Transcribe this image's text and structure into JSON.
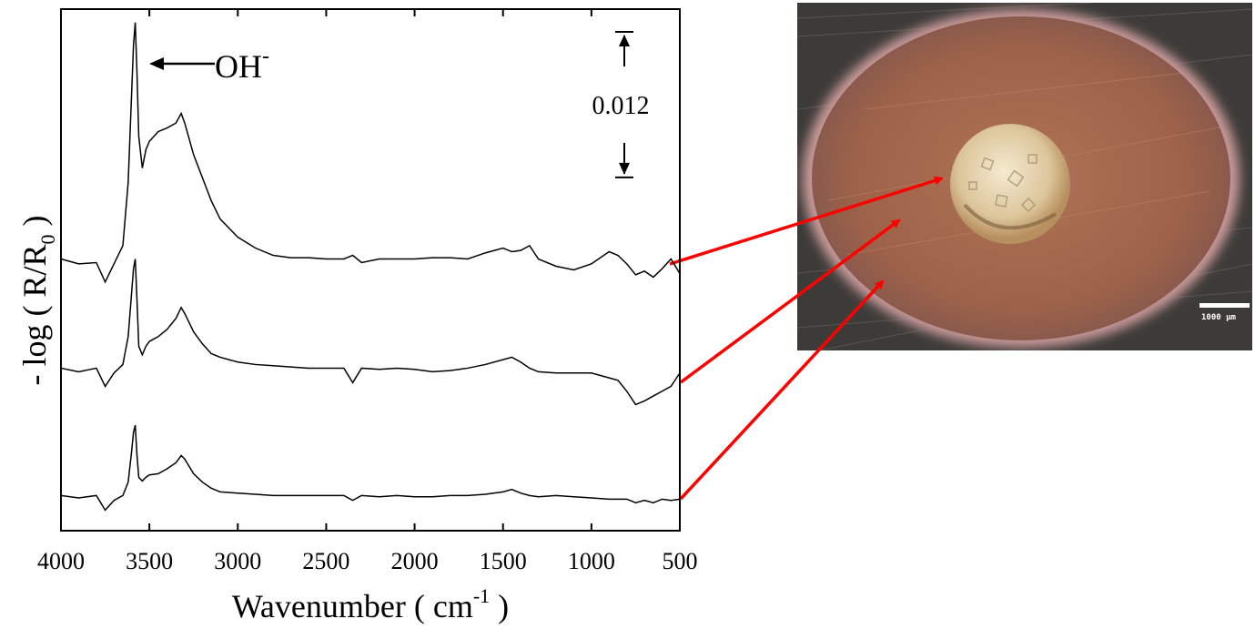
{
  "chart_data": {
    "type": "line",
    "x_label": {
      "text": "Wavenumber ( cm",
      "sup": "-1",
      "end": " )"
    },
    "y_label": {
      "text": "- log ( R/R",
      "sub": "0",
      "end": " )"
    },
    "annotation": {
      "text": "OH",
      "sup": "-"
    },
    "scale_bar": 0.012,
    "xlim": [
      4000,
      500
    ],
    "ylim": [
      0,
      0.043
    ],
    "xticks": [
      4000,
      3500,
      3000,
      2500,
      2000,
      1500,
      1000,
      500
    ],
    "x": [
      4000,
      3900,
      3800,
      3750,
      3700,
      3650,
      3620,
      3600,
      3590,
      3580,
      3570,
      3560,
      3540,
      3520,
      3500,
      3450,
      3400,
      3350,
      3320,
      3300,
      3250,
      3200,
      3150,
      3100,
      3000,
      2900,
      2800,
      2700,
      2600,
      2500,
      2400,
      2350,
      2300,
      2200,
      2100,
      2000,
      1900,
      1800,
      1700,
      1600,
      1500,
      1450,
      1400,
      1350,
      1300,
      1200,
      1100,
      1000,
      900,
      850,
      800,
      750,
      700,
      650,
      600,
      550,
      500
    ],
    "series": [
      {
        "color": "#000000",
        "values": [
          0.0224,
          0.022,
          0.0221,
          0.0205,
          0.022,
          0.0235,
          0.0287,
          0.0362,
          0.04,
          0.0419,
          0.0377,
          0.0325,
          0.0299,
          0.0314,
          0.0321,
          0.0329,
          0.0332,
          0.0336,
          0.0344,
          0.0336,
          0.031,
          0.0291,
          0.0272,
          0.0257,
          0.0242,
          0.0233,
          0.0227,
          0.0225,
          0.0225,
          0.0224,
          0.0224,
          0.0227,
          0.0221,
          0.0224,
          0.0224,
          0.0224,
          0.0225,
          0.0225,
          0.0224,
          0.0229,
          0.0233,
          0.023,
          0.0231,
          0.0235,
          0.0224,
          0.0218,
          0.0215,
          0.022,
          0.023,
          0.0227,
          0.022,
          0.0211,
          0.0214,
          0.0209,
          0.0216,
          0.0224,
          0.0212
        ]
      },
      {
        "color": "#000000",
        "values": [
          0.0134,
          0.0131,
          0.0134,
          0.0119,
          0.013,
          0.0137,
          0.016,
          0.0197,
          0.0216,
          0.0224,
          0.019,
          0.0152,
          0.0145,
          0.0152,
          0.0156,
          0.016,
          0.0166,
          0.0175,
          0.0184,
          0.0179,
          0.0164,
          0.0154,
          0.0146,
          0.0143,
          0.0139,
          0.0137,
          0.0136,
          0.0135,
          0.0134,
          0.0134,
          0.0134,
          0.0122,
          0.0134,
          0.0133,
          0.0134,
          0.0133,
          0.0131,
          0.0132,
          0.0134,
          0.0137,
          0.0141,
          0.0143,
          0.0139,
          0.0134,
          0.0131,
          0.013,
          0.013,
          0.013,
          0.0126,
          0.0124,
          0.0115,
          0.0104,
          0.0107,
          0.0111,
          0.0115,
          0.0119,
          0.013
        ]
      },
      {
        "color": "#000000",
        "values": [
          0.0029,
          0.0027,
          0.0029,
          0.0017,
          0.0025,
          0.0029,
          0.004,
          0.0066,
          0.0081,
          0.0087,
          0.0062,
          0.0044,
          0.0041,
          0.0044,
          0.0046,
          0.0047,
          0.0051,
          0.0056,
          0.0062,
          0.0059,
          0.0047,
          0.004,
          0.0035,
          0.0032,
          0.0031,
          0.003,
          0.0029,
          0.0029,
          0.0029,
          0.0029,
          0.0029,
          0.0025,
          0.0029,
          0.0028,
          0.0029,
          0.0028,
          0.0028,
          0.0029,
          0.0029,
          0.003,
          0.0032,
          0.0034,
          0.0031,
          0.0029,
          0.0028,
          0.0029,
          0.0028,
          0.0027,
          0.0026,
          0.0026,
          0.0026,
          0.0023,
          0.0025,
          0.0023,
          0.0026,
          0.0025,
          0.0026
        ]
      }
    ]
  },
  "image": {
    "scale_label": "1000 µm"
  }
}
